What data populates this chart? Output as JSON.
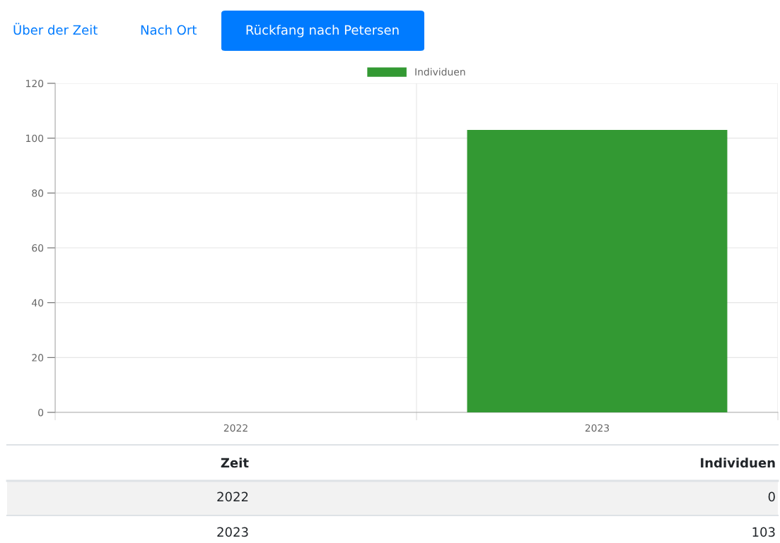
{
  "chart_data": {
    "type": "bar",
    "annotations": [
      "Über der Zeit",
      "Nach Ort",
      "Rückfang nach Petersen",
      "0",
      "103"
    ],
    "xlabel": "Zeit",
    "categories": [
      "2022",
      "2023"
    ],
    "series": [
      {
        "name": "Individuen",
        "color": "#339933",
        "values": [
          0,
          103
        ]
      }
    ],
    "ylim": [
      0,
      120
    ],
    "yticks": [
      0,
      20,
      40,
      60,
      80,
      100,
      120
    ],
    "grid": true,
    "legend": "top"
  }
}
